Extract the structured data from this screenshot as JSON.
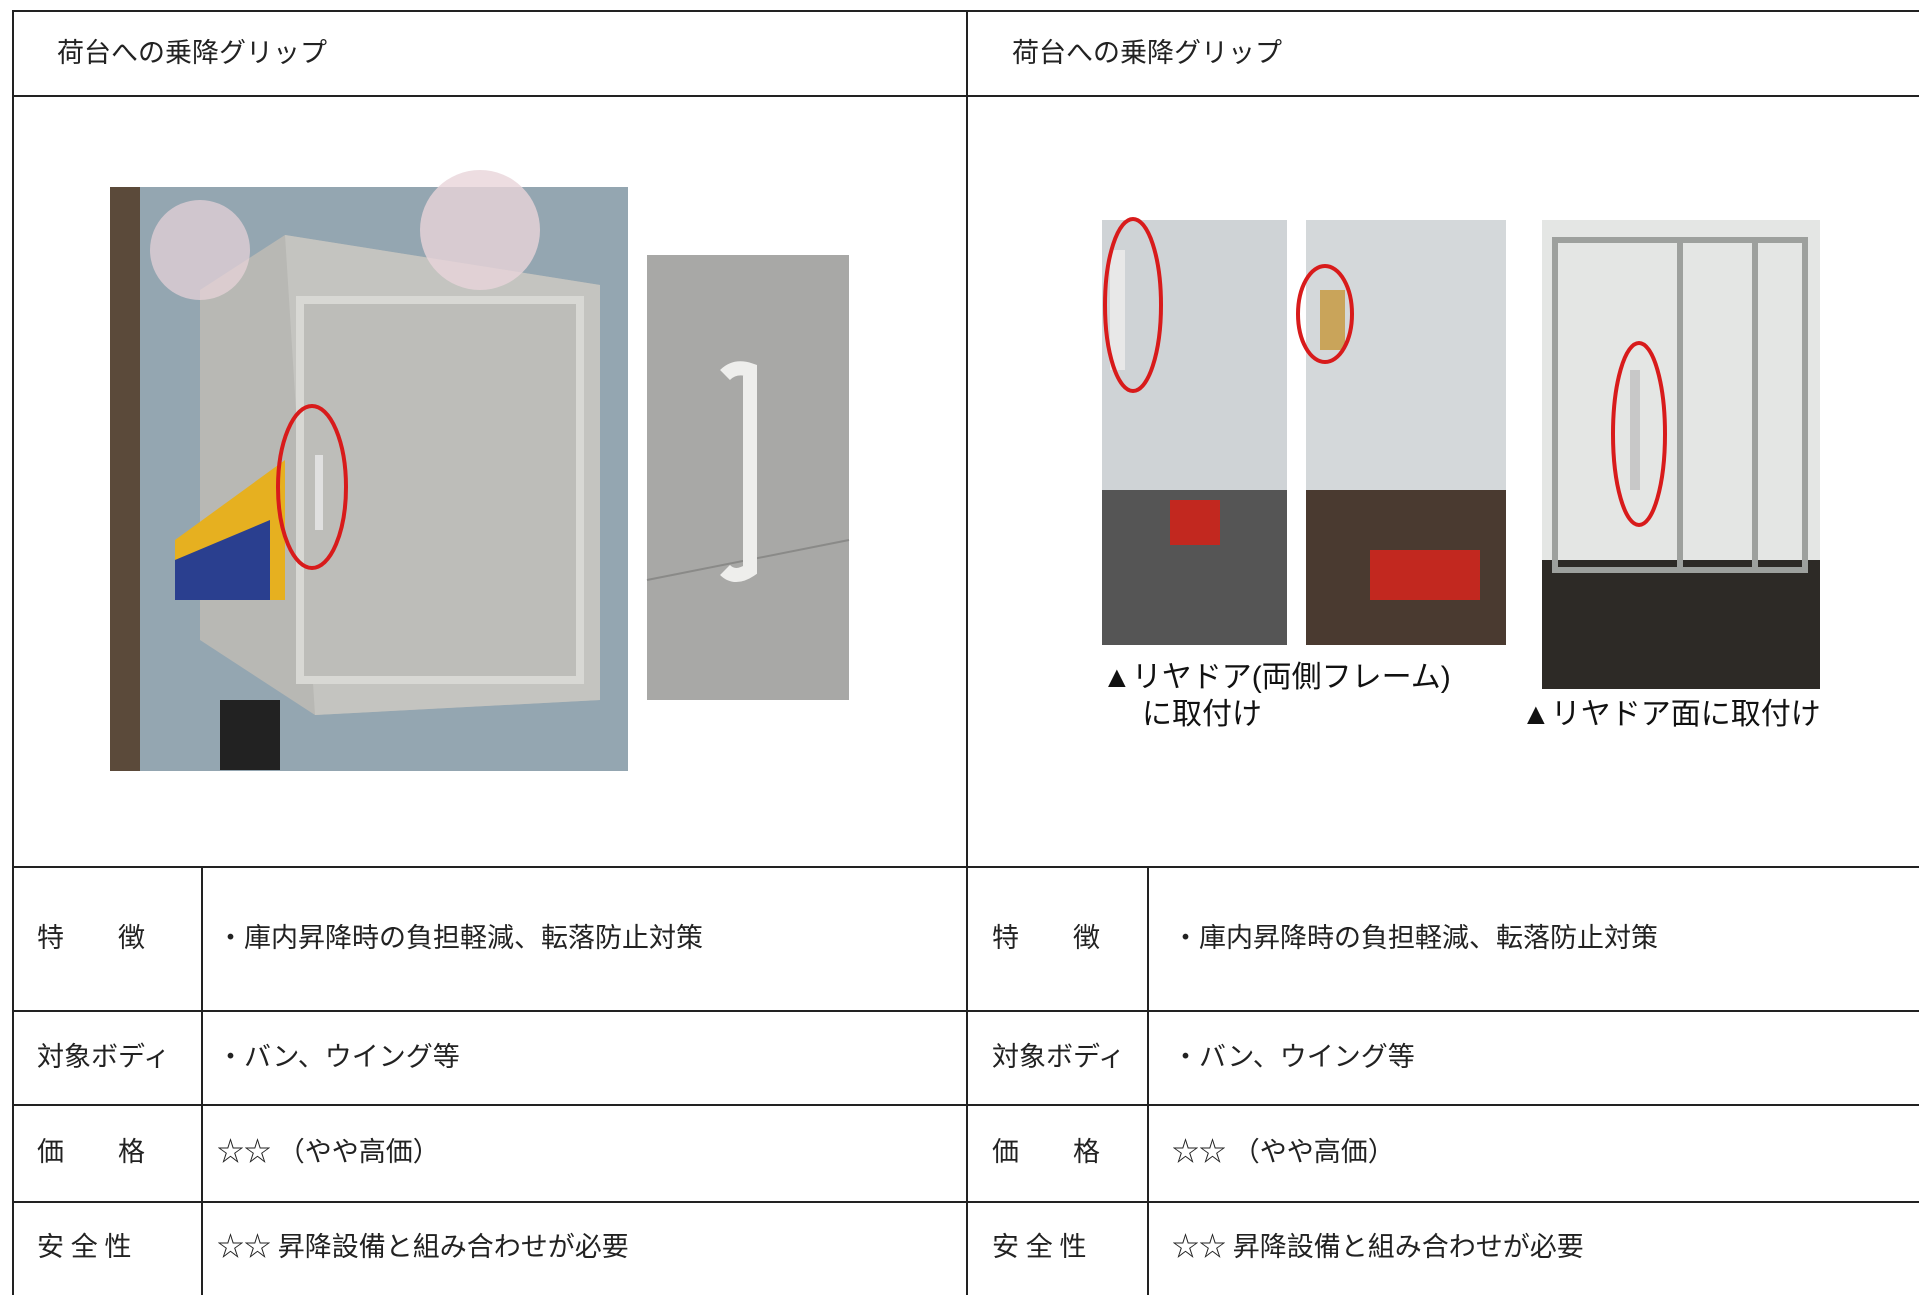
{
  "panels": [
    {
      "title": "荷台への乗降グリップ",
      "image_captions": [],
      "rows": [
        {
          "label": "特　　徴",
          "text": "・庫内昇降時の負担軽減、転落防止対策"
        },
        {
          "label": "対象ボディ",
          "text": "・バン、ウイング等"
        },
        {
          "label": "価　　格",
          "text": "☆☆ （やや高価）"
        },
        {
          "label": "安 全 性",
          "text": "☆☆ 昇降設備と組み合わせが必要"
        }
      ]
    },
    {
      "title": "荷台への乗降グリップ",
      "image_captions": [
        "▲リヤドア(両側フレーム)",
        "に取付け",
        "▲リヤドア面に取付け"
      ],
      "rows": [
        {
          "label": "特　　徴",
          "text": "・庫内昇降時の負担軽減、転落防止対策"
        },
        {
          "label": "対象ボディ",
          "text": "・バン、ウイング等"
        },
        {
          "label": "価　　格",
          "text": "☆☆ （やや高価）"
        },
        {
          "label": "安 全 性",
          "text": "☆☆ 昇降設備と組み合わせが必要"
        }
      ]
    }
  ]
}
